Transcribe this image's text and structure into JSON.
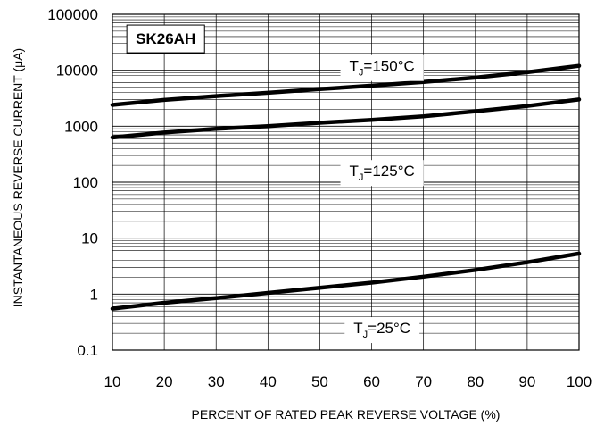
{
  "chart_data": {
    "type": "line",
    "title": "",
    "badge": "SK26AH",
    "xlabel": "PERCENT OF RATED PEAK REVERSE VOLTAGE (%)",
    "ylabel": "INSTANTANEOUS REVERSE CURRENT (μA)",
    "x_range": [
      10,
      100
    ],
    "y_range": [
      0.1,
      100000
    ],
    "y_scale": "log",
    "grid": true,
    "x_ticks": [
      "10",
      "20",
      "30",
      "40",
      "50",
      "60",
      "70",
      "80",
      "90",
      "100"
    ],
    "y_ticks": [
      "100000",
      "10000",
      "1000",
      "100",
      "10",
      "1",
      "0.1"
    ],
    "series": [
      {
        "name": "TJ=150°C",
        "label_main": "T",
        "label_sub": "J",
        "label_rest": "=150°C",
        "x": [
          10,
          20,
          30,
          40,
          50,
          60,
          70,
          80,
          90,
          100
        ],
        "y": [
          2400,
          2950,
          3450,
          3950,
          4600,
          5300,
          6200,
          7400,
          9200,
          12000
        ]
      },
      {
        "name": "TJ=125°C",
        "label_main": "T",
        "label_sub": "J",
        "label_rest": "=125°C",
        "x": [
          10,
          20,
          30,
          40,
          50,
          60,
          70,
          80,
          90,
          100
        ],
        "y": [
          630,
          770,
          900,
          1000,
          1150,
          1300,
          1500,
          1850,
          2300,
          3000
        ]
      },
      {
        "name": "TJ=25°C",
        "label_main": "T",
        "label_sub": "J",
        "label_rest": "=25°C",
        "x": [
          10,
          20,
          30,
          40,
          50,
          60,
          70,
          80,
          90,
          100
        ],
        "y": [
          0.55,
          0.7,
          0.85,
          1.05,
          1.3,
          1.6,
          2.05,
          2.7,
          3.7,
          5.3
        ]
      }
    ]
  }
}
